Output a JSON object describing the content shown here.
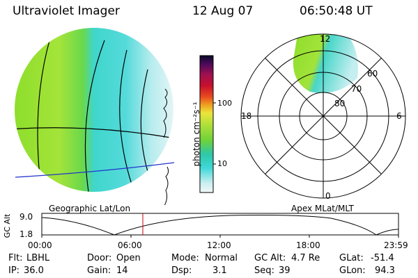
{
  "header": {
    "title": "Ultraviolet Imager",
    "date": "12 Aug 07",
    "time": "06:50:48 UT"
  },
  "colorbar": {
    "unit_label": "photon cm⁻²s⁻¹",
    "tick_labels": [
      "100",
      "10"
    ]
  },
  "polar_plot": {
    "lat_labels": [
      "60",
      "70",
      "80"
    ],
    "mlt_labels": [
      "12",
      "18",
      "6",
      "0"
    ]
  },
  "timeline": {
    "left_caption": "Geographic Lat/Lon",
    "right_caption": "Apex MLat/MLT",
    "y_axis_label": "GC Alt",
    "y_ticks": [
      "9.0",
      "1.8"
    ],
    "x_ticks": [
      "00:00",
      "06:00",
      "12:00",
      "18:00",
      "23:59"
    ],
    "current_time_marker": "06:50:48"
  },
  "status": {
    "flt_label": "Flt:",
    "flt_value": "LBHL",
    "ip_label": "IP:",
    "ip_value": "36.0",
    "door_label": "Door:",
    "door_value": "Open",
    "gain_label": "Gain:",
    "gain_value": "14",
    "mode_label": "Mode:",
    "mode_value": "Normal",
    "dsp_label": "Dsp:",
    "dsp_value": "3.1",
    "gcalt_label": "GC Alt:",
    "gcalt_value": "4.7 Re",
    "seq_label": "Seq:",
    "seq_value": "39",
    "glat_label": "GLat:",
    "glat_value": "-51.4",
    "glon_label": "GLon:",
    "glon_value": "94.3"
  },
  "colors": {
    "green": "#7ddc2a",
    "cyan": "#3fd8d8",
    "light_cyan": "#cfeff0",
    "marker_red": "#cc0000",
    "lon_blue": "#2233cc"
  }
}
